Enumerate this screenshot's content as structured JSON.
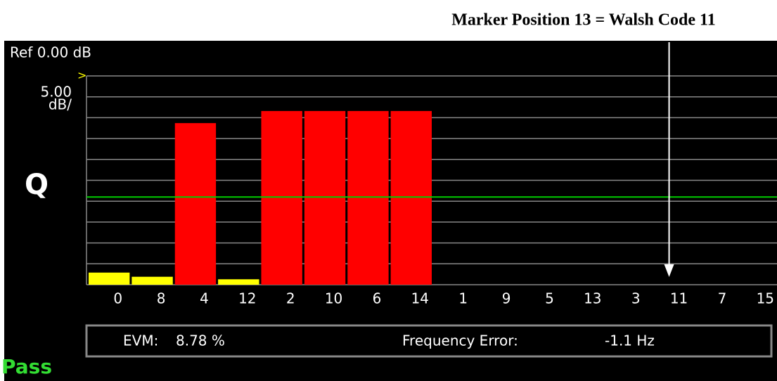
{
  "chart_data": {
    "type": "bar",
    "title": "Marker Position 13 = Walsh Code 11",
    "ref_label": "Ref 0.00 dB",
    "scale_label": [
      "5.00",
      "dB/"
    ],
    "channel": "Q",
    "categories": [
      "0",
      "8",
      "4",
      "12",
      "2",
      "10",
      "6",
      "14",
      "1",
      "9",
      "5",
      "13",
      "3",
      "11",
      "7",
      "15"
    ],
    "values": [
      -47.1,
      -48.1,
      -11.3,
      -48.7,
      -8.4,
      -8.4,
      -8.4,
      -8.4,
      -50,
      -50,
      -50,
      -50,
      -50,
      -50,
      -50,
      -50
    ],
    "colors": [
      "#ffff00",
      "#ffff00",
      "#ff0000",
      "#ffff00",
      "#ff0000",
      "#ff0000",
      "#ff0000",
      "#ff0000",
      "#ffff00",
      "#ffff00",
      "#ffff00",
      "#ffff00",
      "#ffff00",
      "#ffff00",
      "#ffff00",
      "#ffff00"
    ],
    "ylim": [
      -50,
      0
    ],
    "yticks": [
      0,
      -5,
      -10,
      -15,
      -20,
      -25,
      -30,
      -35,
      -40,
      -45,
      -50
    ],
    "grid": true,
    "threshold": {
      "value": -29,
      "color": "#00cc00"
    },
    "marker": {
      "category_index": 13
    },
    "readouts": [
      {
        "label": "EVM:",
        "value": "8.78 %"
      },
      {
        "label": "Frequency Error:",
        "value": "-1.1 Hz"
      }
    ],
    "status": "Pass"
  }
}
